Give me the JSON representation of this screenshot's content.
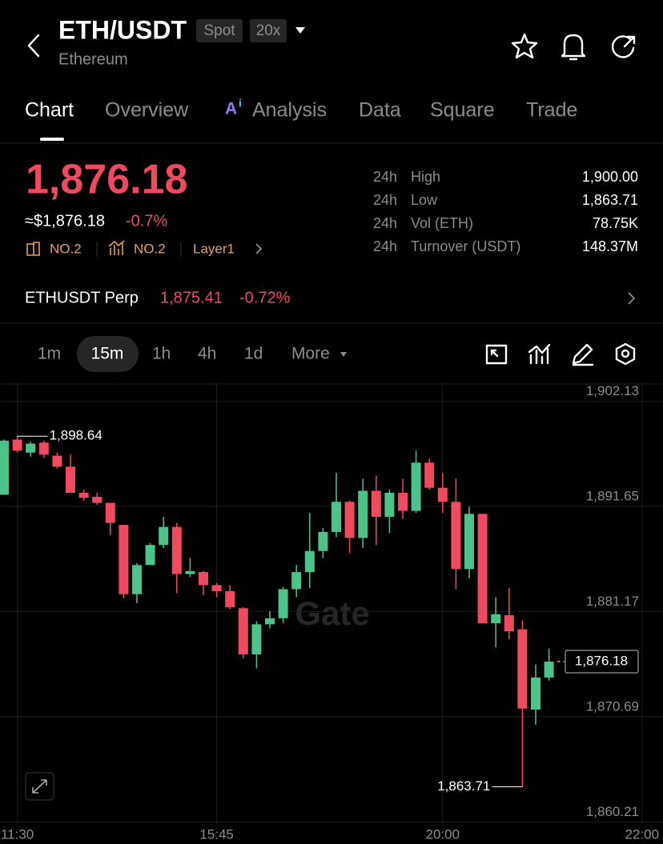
{
  "header": {
    "symbol": "ETH/USDT",
    "badges": [
      "Spot",
      "20x"
    ],
    "subtitle": "Ethereum"
  },
  "tabs": [
    "Chart",
    "Overview",
    "Analysis",
    "Data",
    "Square",
    "Trade"
  ],
  "ticker": {
    "price": "1,876.18",
    "usd_price": "≈$1,876.18",
    "change": "-0.7%",
    "tags": [
      "NO.2",
      "NO.2",
      "Layer1"
    ],
    "stats": [
      [
        "24h",
        "High",
        "1,900.00"
      ],
      [
        "24h",
        "Low",
        "1,863.71"
      ],
      [
        "24h",
        "Vol (ETH)",
        "78.75K"
      ],
      [
        "24h",
        "Turnover (USDT)",
        "148.37M"
      ]
    ]
  },
  "perp": {
    "name": "ETHUSDT Perp",
    "price": "1,875.41",
    "change": "-0.72%"
  },
  "intervals": [
    "1m",
    "15m",
    "1h",
    "4h",
    "1d",
    "More"
  ],
  "chart_data": {
    "type": "candlestick",
    "watermark": "Gate",
    "up_color": "#4cc38a",
    "down_color": "#ef4a5f",
    "grid": true,
    "categories": [
      null,
      "11:30",
      null,
      null,
      null,
      null,
      null,
      null,
      null,
      null,
      null,
      null,
      null,
      null,
      null,
      null,
      "15:45",
      null,
      null,
      null,
      null,
      null,
      null,
      null,
      null,
      null,
      null,
      null,
      null,
      null,
      null,
      null,
      null,
      "20:00",
      null,
      null,
      null,
      null,
      null,
      null,
      null,
      null,
      null,
      null,
      null,
      null,
      null,
      null,
      "22:00"
    ],
    "open": [
      1892.8,
      1898.3,
      1897.0,
      1898.0,
      1896.7,
      1895.6,
      1893.0,
      1892.6,
      1892.0,
      1889.8,
      1882.9,
      1885.8,
      1887.8,
      1889.6,
      1884.9,
      1885.1,
      1883.8,
      1883.2,
      1881.5,
      1876.9,
      1879.9,
      1880.5,
      1883.4,
      1885.1,
      1887.2,
      1889.1,
      1892.1,
      1888.5,
      1893.2,
      1890.6,
      1893.0,
      1891.2,
      1896.0,
      1893.5,
      1892.1,
      1885.4,
      1890.9,
      1880.0,
      1880.8,
      1879.4,
      1871.4,
      1874.6,
      null,
      null,
      null,
      null,
      null,
      null,
      null
    ],
    "high": [
      1898.3,
      1898.64,
      1898.1,
      1898.2,
      1897.0,
      1896.8,
      1893.3,
      1893.0,
      1892.0,
      1889.8,
      1886.0,
      1888.0,
      1890.6,
      1890.0,
      1886.5,
      1885.2,
      1884.0,
      1883.8,
      1881.6,
      1880.2,
      1881.2,
      1883.6,
      1885.8,
      1891.0,
      1889.5,
      1895.0,
      1892.2,
      1894.4,
      1894.7,
      1893.3,
      1894.4,
      1897.2,
      1896.4,
      1895.0,
      1894.4,
      1891.6,
      1890.9,
      1882.6,
      1883.5,
      1880.3,
      1875.9,
      1877.5,
      null,
      null,
      null,
      null,
      null,
      null,
      null
    ],
    "low": [
      1892.8,
      1897.0,
      1896.6,
      1896.5,
      1895.4,
      1893.0,
      1892.2,
      1891.8,
      1888.8,
      1882.5,
      1882.0,
      1885.8,
      1887.5,
      1883.0,
      1884.6,
      1882.8,
      1882.6,
      1881.4,
      1876.5,
      1875.5,
      1879.5,
      1880.0,
      1882.6,
      1883.5,
      1886.5,
      1888.6,
      1887.0,
      1887.5,
      1887.8,
      1889.0,
      1890.4,
      1891.0,
      1893.3,
      1891.0,
      1883.4,
      1884.5,
      1880.0,
      1877.6,
      1878.4,
      1863.71,
      1869.9,
      1874.3,
      null,
      null,
      null,
      null,
      null,
      null,
      null
    ],
    "close": [
      1898.2,
      1897.2,
      1897.9,
      1896.8,
      1895.6,
      1893.0,
      1892.5,
      1892.0,
      1890.0,
      1882.9,
      1885.8,
      1887.8,
      1889.6,
      1884.9,
      1885.2,
      1883.8,
      1883.2,
      1881.6,
      1876.9,
      1879.9,
      1880.5,
      1883.4,
      1885.1,
      1887.2,
      1889.1,
      1892.1,
      1888.5,
      1893.2,
      1890.6,
      1893.0,
      1891.2,
      1896.0,
      1893.5,
      1892.1,
      1885.4,
      1890.9,
      1880.0,
      1880.9,
      1879.2,
      1871.5,
      1874.6,
      1876.18,
      null,
      null,
      null,
      null,
      null,
      null,
      null
    ],
    "ylim": [
      1860,
      1904
    ],
    "yticks": [
      {
        "value": 1902.13,
        "label": "1,902.13"
      },
      {
        "value": 1891.65,
        "label": "1,891.65"
      },
      {
        "value": 1881.17,
        "label": "1,881.17"
      },
      {
        "value": 1870.69,
        "label": "1,870.69"
      },
      {
        "value": 1860.21,
        "label": "1,860.21"
      }
    ],
    "annotations": [
      {
        "value": 1898.64,
        "label": "1,898.64"
      },
      {
        "value": 1863.71,
        "label": "1,863.71"
      },
      {
        "value": 1876.18,
        "label": "1,876.18"
      }
    ]
  }
}
